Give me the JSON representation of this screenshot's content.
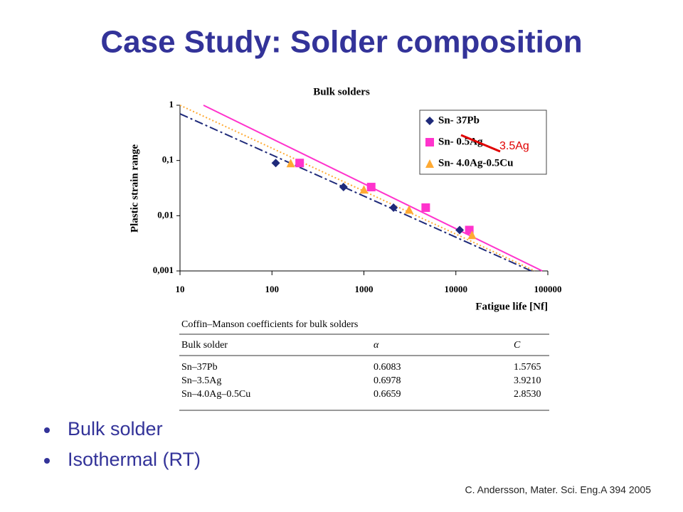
{
  "slide_title": "Case Study: Solder composition",
  "chart_data": {
    "type": "scatter",
    "title": "Bulk solders",
    "x_label": "Fatigue life [Nf]",
    "y_label": "Plastic strain range",
    "log_x": true,
    "log_y": true,
    "xlim": [
      10,
      100000
    ],
    "ylim": [
      0.001,
      1
    ],
    "xticks": [
      10,
      100,
      1000,
      10000,
      100000
    ],
    "yticks": [
      {
        "value": 0.001,
        "label": "0,001"
      },
      {
        "value": 0.01,
        "label": "0,01"
      },
      {
        "value": 0.1,
        "label": "0,1"
      },
      1
    ],
    "legend": "top-right",
    "series": [
      {
        "name": "Sn- 37Pb",
        "color": "#1f2a7a",
        "marker": "diamond",
        "x": [
          110,
          600,
          2100,
          11000
        ],
        "values": [
          0.09,
          0.033,
          0.014,
          0.0055
        ]
      },
      {
        "name": "Sn- 0.5Ag",
        "color": "#ff33cc",
        "marker": "square",
        "x": [
          200,
          1200,
          4700,
          14000
        ],
        "values": [
          0.09,
          0.033,
          0.014,
          0.0055
        ]
      },
      {
        "name": "Sn- 4.0Ag-0.5Cu",
        "color": "#ffaa33",
        "marker": "triangle",
        "x": [
          160,
          1000,
          3100,
          15000
        ],
        "values": [
          0.09,
          0.03,
          0.013,
          0.0045
        ]
      }
    ],
    "fit_lines": [
      {
        "color": "#1f2a7a",
        "dash": "dashdot",
        "x": [
          10,
          66000
        ],
        "values": [
          0.7,
          0.001
        ]
      },
      {
        "color": "#ff33cc",
        "dash": "solid",
        "x": [
          18,
          87000
        ],
        "values": [
          1,
          0.001
        ]
      },
      {
        "color": "#ffaa33",
        "dash": "dot",
        "x": [
          10,
          72000
        ],
        "values": [
          1,
          0.001
        ]
      }
    ],
    "annotation": "3.5Ag"
  },
  "table": {
    "caption": "Coffin–Manson coefficients for bulk solders",
    "header": [
      "Bulk solder",
      "α",
      "C"
    ],
    "rows": [
      [
        "Sn–37Pb",
        "0.6083",
        "1.5765"
      ],
      [
        "Sn–3.5Ag",
        "0.6978",
        "3.9210"
      ],
      [
        "Sn–4.0Ag–0.5Cu",
        "0.6659",
        "2.8530"
      ]
    ]
  },
  "bullets": [
    "Bulk solder",
    "Isothermal (RT)"
  ],
  "citation": "C. Andersson, Mater. Sci. Eng.A 394 2005"
}
